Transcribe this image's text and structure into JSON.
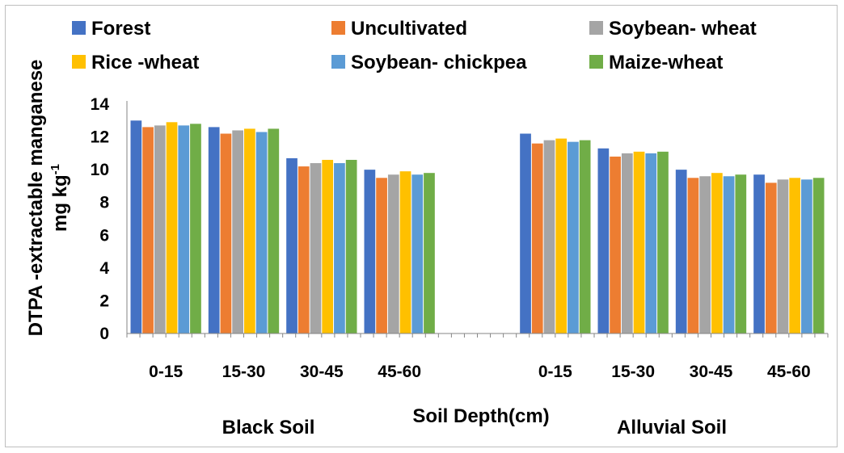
{
  "chart_data": {
    "type": "bar",
    "groups": [
      {
        "label": "Black Soil",
        "categories": [
          "0-15",
          "15-30",
          "30-45",
          "45-60"
        ]
      },
      {
        "label": "Alluvial Soil",
        "categories": [
          "0-15",
          "15-30",
          "30-45",
          "45-60"
        ]
      }
    ],
    "series": [
      {
        "name": "Forest",
        "color": "#4472C4",
        "values": [
          13.0,
          12.6,
          10.7,
          10.0,
          12.2,
          11.3,
          10.0,
          9.7
        ]
      },
      {
        "name": "Uncultivated",
        "color": "#ED7D31",
        "values": [
          12.6,
          12.2,
          10.2,
          9.5,
          11.6,
          10.8,
          9.5,
          9.2
        ]
      },
      {
        "name": "Soybean- wheat",
        "color": "#A5A5A5",
        "values": [
          12.7,
          12.4,
          10.4,
          9.7,
          11.8,
          11.0,
          9.6,
          9.4
        ]
      },
      {
        "name": "Rice -wheat",
        "color": "#FFC000",
        "values": [
          12.9,
          12.5,
          10.6,
          9.9,
          11.9,
          11.1,
          9.8,
          9.5
        ]
      },
      {
        "name": "Soybean- chickpea",
        "color": "#5B9BD5",
        "values": [
          12.7,
          12.3,
          10.4,
          9.7,
          11.7,
          11.0,
          9.6,
          9.4
        ]
      },
      {
        "name": "Maize-wheat",
        "color": "#70AD47",
        "values": [
          12.8,
          12.5,
          10.6,
          9.8,
          11.8,
          11.1,
          9.7,
          9.5
        ]
      }
    ],
    "xlabel": "Soil Depth(cm)",
    "ylabel_line1": "DTPA -extractable manganese",
    "ylabel_line2": "mg kg",
    "ylabel_sup": "-1",
    "ylim": [
      0,
      14
    ],
    "yticks": [
      0,
      2,
      4,
      6,
      8,
      10,
      12,
      14
    ],
    "grid": false,
    "legend_position": "top"
  }
}
